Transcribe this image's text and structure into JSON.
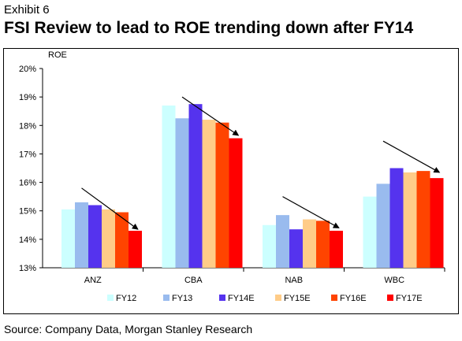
{
  "exhibit_label": "Exhibit 6",
  "title": "FSI Review to lead to ROE trending down after FY14",
  "source": "Source: Company Data, Morgan Stanley Research",
  "colors": {
    "FY12": "#ccffff",
    "FY13": "#99bbee",
    "FY14E": "#5533ee",
    "FY15E": "#ffcc88",
    "FY16E": "#ff4400",
    "FY17E": "#ff0000"
  },
  "chart_data": {
    "type": "bar",
    "ylabel": "ROE",
    "ylim": [
      13,
      20
    ],
    "yticks": [
      "13%",
      "14%",
      "15%",
      "16%",
      "17%",
      "18%",
      "19%",
      "20%"
    ],
    "categories": [
      "ANZ",
      "CBA",
      "NAB",
      "WBC"
    ],
    "series": [
      {
        "name": "FY12",
        "values": [
          15.05,
          18.7,
          14.5,
          15.5
        ]
      },
      {
        "name": "FY13",
        "values": [
          15.3,
          18.25,
          14.85,
          15.95
        ]
      },
      {
        "name": "FY14E",
        "values": [
          15.2,
          18.75,
          14.35,
          16.5
        ]
      },
      {
        "name": "FY15E",
        "values": [
          15.05,
          18.2,
          14.7,
          16.35
        ]
      },
      {
        "name": "FY16E",
        "values": [
          14.95,
          18.1,
          14.65,
          16.4
        ]
      },
      {
        "name": "FY17E",
        "values": [
          14.3,
          17.55,
          14.3,
          16.15
        ]
      }
    ],
    "legend_position": "bottom",
    "grid": false,
    "annotations": [
      {
        "type": "arrow",
        "category": "ANZ",
        "from": [
          15.8
        ],
        "to": [
          14.35
        ]
      },
      {
        "type": "arrow",
        "category": "CBA",
        "from": [
          19.0
        ],
        "to": [
          17.65
        ]
      },
      {
        "type": "arrow",
        "category": "NAB",
        "from": [
          15.5
        ],
        "to": [
          14.4
        ]
      },
      {
        "type": "arrow",
        "category": "WBC",
        "from": [
          17.45
        ],
        "to": [
          16.35
        ]
      }
    ]
  }
}
